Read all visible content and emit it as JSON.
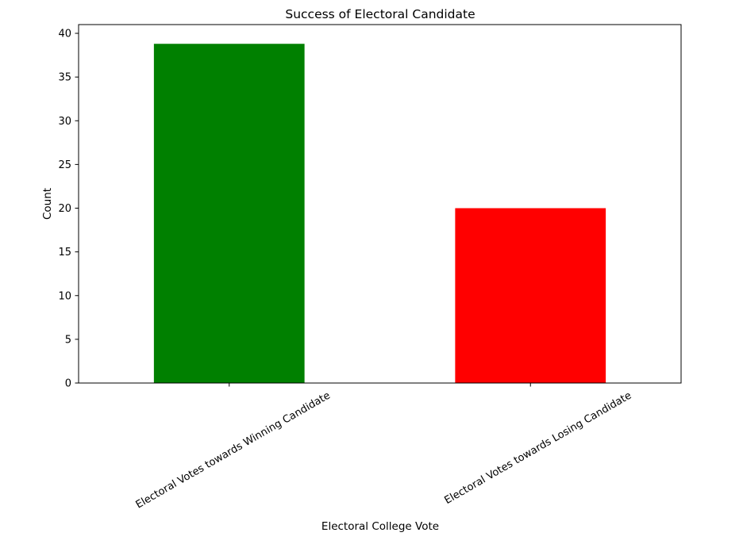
{
  "chart_data": {
    "type": "bar",
    "title": "Success of Electoral Candidate",
    "xlabel": "Electoral College Vote",
    "ylabel": "Count",
    "categories": [
      "Electoral Votes towards Winning Candidate",
      "Electoral Votes towards Losing Candidate"
    ],
    "values": [
      38.8,
      20
    ],
    "bar_colors": [
      "#008000",
      "#ff0000"
    ],
    "ylim": [
      0,
      41
    ],
    "yticks": [
      0,
      5,
      10,
      15,
      20,
      25,
      30,
      35,
      40
    ],
    "grid": false,
    "legend": "none"
  }
}
